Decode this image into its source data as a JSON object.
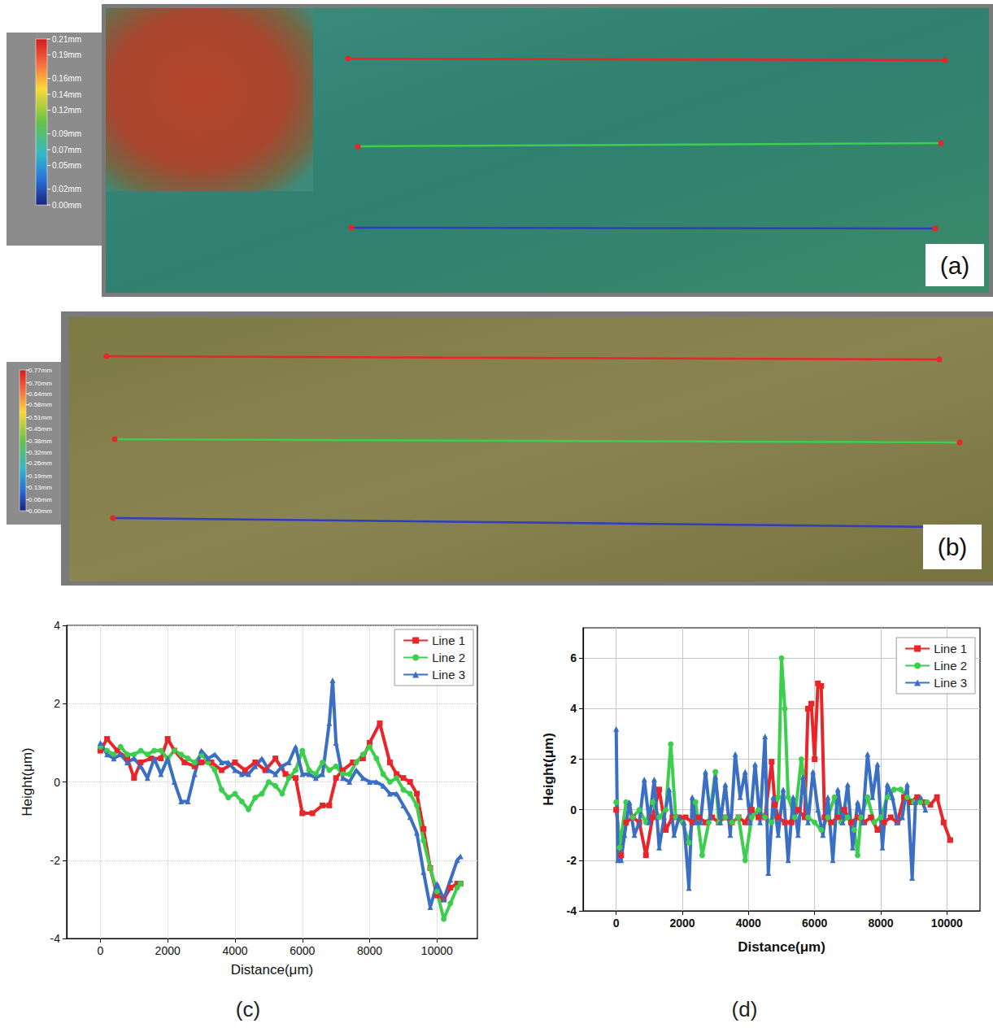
{
  "chart_data": [
    {
      "type": "height_map",
      "label": "(a)",
      "colorbar": {
        "range": [
          0,
          0.21
        ],
        "ticks": [
          {
            "value": 0.21,
            "label": "0.21mm"
          },
          {
            "value": 0.19,
            "label": "0.19mm"
          },
          {
            "value": 0.16,
            "label": "0.16mm"
          },
          {
            "value": 0.14,
            "label": "0.14mm"
          },
          {
            "value": 0.12,
            "label": "0.12mm"
          },
          {
            "value": 0.09,
            "label": "0.09mm"
          },
          {
            "value": 0.07,
            "label": "0.07mm"
          },
          {
            "value": 0.05,
            "label": "0.05mm"
          },
          {
            "value": 0.02,
            "label": "0.02mm"
          },
          {
            "value": 0.0,
            "label": "0.00mm"
          }
        ]
      },
      "series": [
        {
          "color": "#e8262a"
        },
        {
          "color": "#3ccf4e"
        },
        {
          "color": "#2d3fbf"
        }
      ]
    },
    {
      "type": "height_map",
      "label": "(b)",
      "colorbar": {
        "range": [
          0,
          0.77
        ],
        "ticks": [
          {
            "value": 0.77,
            "label": "0.77mm"
          },
          {
            "value": 0.7,
            "label": "0.70mm"
          },
          {
            "value": 0.64,
            "label": "0.64mm"
          },
          {
            "value": 0.58,
            "label": "0.58mm"
          },
          {
            "value": 0.51,
            "label": "0.51mm"
          },
          {
            "value": 0.45,
            "label": "0.45mm"
          },
          {
            "value": 0.38,
            "label": "0.38mm"
          },
          {
            "value": 0.32,
            "label": "0.32mm"
          },
          {
            "value": 0.26,
            "label": "0.26mm"
          },
          {
            "value": 0.19,
            "label": "0.19mm"
          },
          {
            "value": 0.13,
            "label": "0.13mm"
          },
          {
            "value": 0.06,
            "label": "0.06mm"
          },
          {
            "value": 0.0,
            "label": "0.00mm"
          }
        ]
      },
      "series": [
        {
          "color": "#e8262a"
        },
        {
          "color": "#3ccf4e"
        },
        {
          "color": "#2d3fbf"
        }
      ]
    },
    {
      "type": "line",
      "label": "(c)",
      "x_label": "Distance(μm)",
      "y_label": "Height(μm)",
      "xlim": [
        -1000,
        11200
      ],
      "xticks": [
        0,
        2000,
        4000,
        6000,
        8000,
        10000
      ],
      "ylim": [
        -4,
        4
      ],
      "yticks": [
        -4,
        -2,
        0,
        2,
        4
      ],
      "grid": true,
      "legend": "upper right",
      "series": [
        {
          "name": "Line 1",
          "color": "#e8262a",
          "marker": "square",
          "x": [
            0,
            200,
            500,
            800,
            1000,
            1200,
            1500,
            1800,
            2000,
            2200,
            2500,
            2800,
            3000,
            3300,
            3600,
            4000,
            4300,
            4600,
            4900,
            5200,
            5500,
            5800,
            6000,
            6300,
            6600,
            6800,
            7000,
            7200,
            7500,
            7800,
            8000,
            8300,
            8600,
            8800,
            9000,
            9200,
            9400,
            9600,
            9800,
            10000,
            10200,
            10400,
            10600,
            10700
          ],
          "values": [
            0.8,
            1.1,
            0.8,
            0.6,
            0.1,
            0.5,
            0.6,
            0.6,
            1.1,
            0.8,
            0.5,
            0.4,
            0.5,
            0.5,
            0.3,
            0.5,
            0.3,
            0.5,
            0.3,
            0.6,
            0.2,
            0.1,
            -0.8,
            -0.8,
            -0.6,
            -0.6,
            0.1,
            0.3,
            0.5,
            0.6,
            1.0,
            1.5,
            0.5,
            0.2,
            0.1,
            0.0,
            -0.3,
            -1.2,
            -2.2,
            -2.9,
            -3.0,
            -2.7,
            -2.6,
            -2.6
          ]
        },
        {
          "name": "Line 2",
          "color": "#3ccf4e",
          "marker": "circle",
          "x": [
            0,
            200,
            400,
            600,
            800,
            1000,
            1200,
            1400,
            1600,
            1800,
            2000,
            2200,
            2400,
            2600,
            2800,
            3000,
            3200,
            3400,
            3600,
            3800,
            4000,
            4200,
            4400,
            4600,
            4800,
            5000,
            5200,
            5400,
            5600,
            5800,
            6000,
            6200,
            6400,
            6600,
            6800,
            7000,
            7200,
            7400,
            7600,
            7800,
            8000,
            8200,
            8400,
            8600,
            8800,
            9000,
            9200,
            9400,
            9600,
            9800,
            10000,
            10200,
            10400,
            10600,
            10700
          ],
          "values": [
            0.9,
            0.8,
            0.7,
            0.9,
            0.7,
            0.7,
            0.8,
            0.7,
            0.8,
            0.8,
            0.6,
            0.8,
            0.7,
            0.6,
            0.5,
            0.7,
            0.5,
            0.3,
            -0.2,
            -0.4,
            -0.3,
            -0.5,
            -0.7,
            -0.4,
            -0.3,
            0.0,
            -0.1,
            -0.3,
            0.1,
            0.3,
            0.8,
            0.3,
            0.2,
            0.5,
            0.3,
            0.4,
            0.2,
            0.2,
            0.5,
            0.7,
            0.9,
            0.6,
            0.2,
            0.0,
            0.1,
            -0.2,
            -0.3,
            -0.6,
            -1.5,
            -2.2,
            -2.8,
            -3.5,
            -3.1,
            -2.7,
            -2.6
          ]
        },
        {
          "name": "Line 3",
          "color": "#3a6fc4",
          "marker": "triangle",
          "x": [
            0,
            200,
            400,
            600,
            800,
            1000,
            1200,
            1400,
            1600,
            1800,
            2000,
            2200,
            2400,
            2600,
            2800,
            3000,
            3200,
            3400,
            3600,
            3800,
            4000,
            4200,
            4400,
            4600,
            4800,
            5000,
            5200,
            5400,
            5600,
            5800,
            6000,
            6200,
            6400,
            6600,
            6800,
            6900,
            7000,
            7200,
            7400,
            7600,
            7800,
            8000,
            8200,
            8400,
            8600,
            8800,
            9000,
            9200,
            9400,
            9600,
            9800,
            10000,
            10200,
            10400,
            10600,
            10700
          ],
          "values": [
            1.0,
            0.7,
            0.6,
            0.7,
            0.5,
            0.6,
            0.4,
            0.1,
            0.6,
            0.2,
            0.6,
            0.0,
            -0.5,
            -0.5,
            0.2,
            0.8,
            0.6,
            0.7,
            0.5,
            0.5,
            0.3,
            0.2,
            0.2,
            0.4,
            0.6,
            0.3,
            0.2,
            0.4,
            0.5,
            0.9,
            0.2,
            0.2,
            0.1,
            0.2,
            1.5,
            2.6,
            1.0,
            0.1,
            0.0,
            0.3,
            0.1,
            0.0,
            0.0,
            -0.1,
            -0.3,
            -0.3,
            -0.6,
            -0.9,
            -1.3,
            -2.3,
            -3.2,
            -2.6,
            -3.0,
            -2.5,
            -2.0,
            -1.9
          ]
        }
      ]
    },
    {
      "type": "line",
      "label": "(d)",
      "x_label": "Distance(μm)",
      "y_label": "Height(μm)",
      "xlim": [
        -1000,
        11000
      ],
      "xticks": [
        0,
        2000,
        4000,
        6000,
        8000,
        10000
      ],
      "ylim": [
        -4,
        7.2
      ],
      "yticks": [
        -4,
        -2,
        0,
        2,
        4,
        6
      ],
      "grid": true,
      "legend": "upper right",
      "series": [
        {
          "name": "Line 1",
          "color": "#e8262a",
          "marker": "square",
          "x": [
            0,
            150,
            300,
            500,
            700,
            900,
            1100,
            1300,
            1500,
            1700,
            1900,
            2100,
            2300,
            2500,
            2700,
            2900,
            3100,
            3300,
            3500,
            3700,
            3900,
            4100,
            4300,
            4500,
            4700,
            4800,
            4900,
            5100,
            5300,
            5500,
            5700,
            5800,
            5900,
            6000,
            6100,
            6200,
            6300,
            6500,
            6700,
            6900,
            7100,
            7300,
            7500,
            7700,
            7900,
            8100,
            8300,
            8500,
            8700,
            8900,
            9100,
            9300,
            9500,
            9700,
            9900,
            10100
          ],
          "values": [
            0,
            -1.8,
            -0.5,
            -0.3,
            -0.5,
            -1.8,
            -0.3,
            0.8,
            -0.8,
            -0.3,
            -0.3,
            -0.3,
            -0.5,
            -0.3,
            -0.5,
            -0.3,
            -0.5,
            -0.3,
            -0.5,
            -0.3,
            -0.5,
            0,
            -0.3,
            -0.3,
            1.9,
            0.2,
            -0.3,
            -0.5,
            -0.5,
            0,
            -0.3,
            4.0,
            4.2,
            2.0,
            5.0,
            4.9,
            -0.3,
            -0.5,
            -0.3,
            0,
            -0.5,
            -0.3,
            -0.5,
            -0.3,
            -0.8,
            -0.5,
            -0.3,
            -0.5,
            0.5,
            0.3,
            0.5,
            0.3,
            0.2,
            0.5,
            -0.5,
            -1.2
          ]
        },
        {
          "name": "Line 2",
          "color": "#3ccf4e",
          "marker": "circle",
          "x": [
            0,
            100,
            300,
            500,
            700,
            900,
            1100,
            1300,
            1500,
            1650,
            1800,
            2000,
            2200,
            2400,
            2600,
            2800,
            3000,
            3100,
            3300,
            3500,
            3700,
            3900,
            4100,
            4300,
            4500,
            4700,
            4900,
            5000,
            5100,
            5200,
            5400,
            5600,
            5800,
            6000,
            6200,
            6400,
            6600,
            6800,
            7000,
            7200,
            7300,
            7400,
            7600,
            7800,
            8000,
            8200,
            8400,
            8600,
            8800,
            9000,
            9200,
            9400
          ],
          "values": [
            0.3,
            -1.5,
            0.3,
            -0.3,
            0,
            -0.5,
            0.3,
            -0.3,
            0,
            2.6,
            -0.3,
            -0.5,
            -1.3,
            0.3,
            -1.8,
            -0.5,
            1.5,
            -0.5,
            -0.3,
            -0.5,
            -0.3,
            -2.0,
            -0.3,
            0,
            -0.3,
            -0.5,
            0.5,
            6.0,
            4.0,
            0.5,
            -0.3,
            2.0,
            -0.3,
            -0.5,
            -0.8,
            -0.3,
            0.5,
            -0.5,
            -0.3,
            -0.8,
            -1.8,
            -0.3,
            0.5,
            -0.5,
            -0.3,
            0.5,
            0.8,
            0.8,
            0.5,
            0.3,
            0.3,
            0.3
          ]
        },
        {
          "name": "Line 3",
          "color": "#3a6fc4",
          "marker": "triangle",
          "x": [
            0,
            50,
            150,
            250,
            400,
            550,
            700,
            850,
            1000,
            1150,
            1300,
            1450,
            1600,
            1750,
            1900,
            2050,
            2200,
            2300,
            2400,
            2550,
            2700,
            2850,
            3000,
            3150,
            3300,
            3450,
            3600,
            3750,
            3900,
            4050,
            4200,
            4350,
            4500,
            4600,
            4750,
            4900,
            5050,
            5200,
            5350,
            5500,
            5650,
            5800,
            5950,
            6100,
            6250,
            6400,
            6550,
            6700,
            6850,
            7000,
            7150,
            7300,
            7450,
            7600,
            7750,
            7900,
            8050,
            8200,
            8350,
            8500,
            8650,
            8800,
            8950,
            9050,
            9200,
            9350
          ],
          "values": [
            3.2,
            -2.0,
            -2.0,
            -1.0,
            0.3,
            -1.0,
            -0.5,
            1.2,
            -0.5,
            1.2,
            -1.5,
            -0.3,
            0.8,
            -1.0,
            -0.3,
            -0.5,
            -3.1,
            0.5,
            -0.5,
            -0.5,
            1.5,
            -0.3,
            1.3,
            -0.5,
            1.0,
            -1.0,
            2.2,
            0.5,
            1.5,
            -0.5,
            1.8,
            -0.5,
            2.9,
            -2.5,
            0.5,
            -1.0,
            0.8,
            -2.0,
            0.5,
            -1.0,
            1.3,
            -0.5,
            1.5,
            0,
            -1.0,
            0.5,
            -2.0,
            0.8,
            -0.5,
            1.0,
            -1.5,
            0.3,
            -0.5,
            2.2,
            0.5,
            1.8,
            -1.5,
            1.0,
            0.5,
            -0.5,
            -0.3,
            1.0,
            -2.7,
            0.3,
            0.5,
            0
          ]
        }
      ]
    }
  ]
}
